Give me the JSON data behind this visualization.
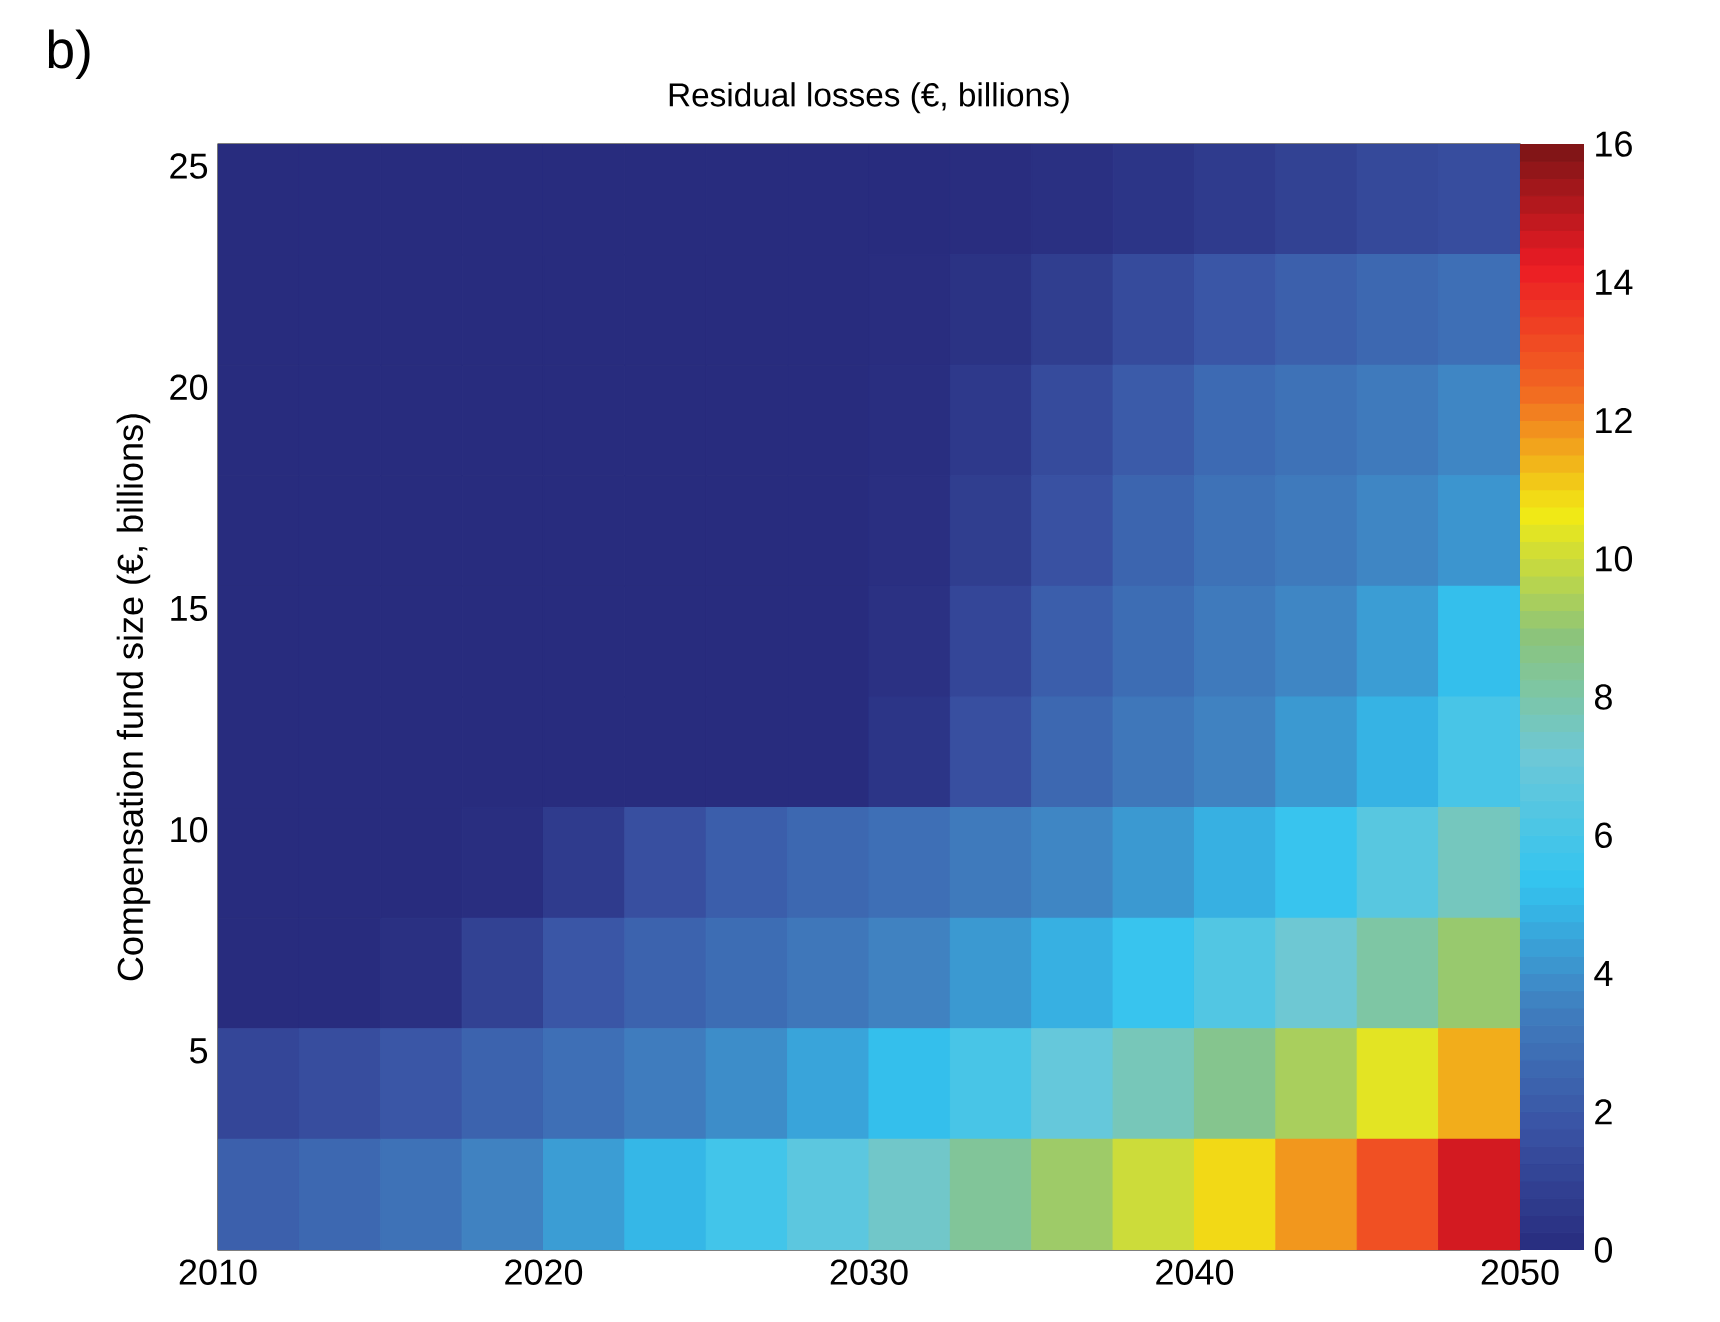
{
  "chart_data": {
    "type": "heatmap",
    "title": "Residual losses (€, billions)",
    "ylabel": "Compensation fund size (€, billions)",
    "clabel": null,
    "annotations": [
      "b)"
    ],
    "x": [
      2011.25,
      2013.75,
      2016.25,
      2018.75,
      2021.25,
      2023.75,
      2026.25,
      2028.75,
      2031.25,
      2033.75,
      2036.25,
      2038.75,
      2041.25,
      2043.75,
      2046.25,
      2048.75
    ],
    "y": [
      24.25,
      21.75,
      19.25,
      16.75,
      14.25,
      11.75,
      9.25,
      6.75,
      4.25,
      1.75
    ],
    "cells": [
      [
        0,
        0,
        0,
        0,
        0,
        0,
        0,
        0,
        0,
        0.05,
        0.2,
        0.4,
        0.7,
        1.0,
        1.3,
        1.5
      ],
      [
        0,
        0,
        0,
        0,
        0,
        0,
        0,
        0,
        0.05,
        0.3,
        0.8,
        1.4,
        1.9,
        2.3,
        2.6,
        2.9
      ],
      [
        0,
        0,
        0,
        0,
        0,
        0,
        0,
        0,
        0.1,
        0.6,
        1.4,
        2.1,
        2.7,
        3.0,
        3.3,
        3.7
      ],
      [
        0,
        0,
        0,
        0,
        0,
        0,
        0,
        0,
        0.15,
        0.8,
        1.7,
        2.5,
        3.0,
        3.3,
        3.7,
        4.1
      ],
      [
        0,
        0,
        0,
        0,
        0,
        0,
        0,
        0,
        0.25,
        1.2,
        2.2,
        2.8,
        3.3,
        3.7,
        4.3,
        5.2
      ],
      [
        0,
        0,
        0,
        0,
        0,
        0,
        0,
        0,
        0.4,
        1.6,
        2.6,
        3.2,
        3.6,
        4.2,
        4.9,
        6.0
      ],
      [
        0,
        0,
        0,
        0.1,
        0.7,
        1.6,
        2.2,
        2.6,
        2.9,
        3.3,
        3.7,
        4.2,
        4.8,
        5.5,
        6.5,
        7.6
      ],
      [
        0,
        0,
        0.2,
        1.0,
        1.9,
        2.4,
        2.8,
        3.2,
        3.6,
        4.2,
        4.8,
        5.5,
        6.3,
        7.2,
        8.1,
        9.1
      ],
      [
        1.2,
        1.5,
        1.9,
        2.4,
        2.9,
        3.4,
        3.9,
        4.5,
        5.2,
        6.0,
        6.9,
        7.7,
        8.5,
        9.4,
        10.4,
        11.5
      ],
      [
        2.3,
        2.6,
        3.0,
        3.6,
        4.3,
        5.0,
        5.8,
        6.6,
        7.4,
        8.3,
        9.2,
        10.0,
        10.9,
        11.8,
        13.0,
        14.6
      ]
    ],
    "xlim": [
      2010,
      2050
    ],
    "ylim": [
      0.5,
      25.5
    ],
    "xticks": [
      2010,
      2020,
      2030,
      2040,
      2050
    ],
    "yticks": [
      5,
      10,
      15,
      20,
      25
    ],
    "clim": [
      0,
      16
    ],
    "cticks": [
      0,
      2,
      4,
      6,
      8,
      10,
      12,
      14,
      16
    ]
  }
}
